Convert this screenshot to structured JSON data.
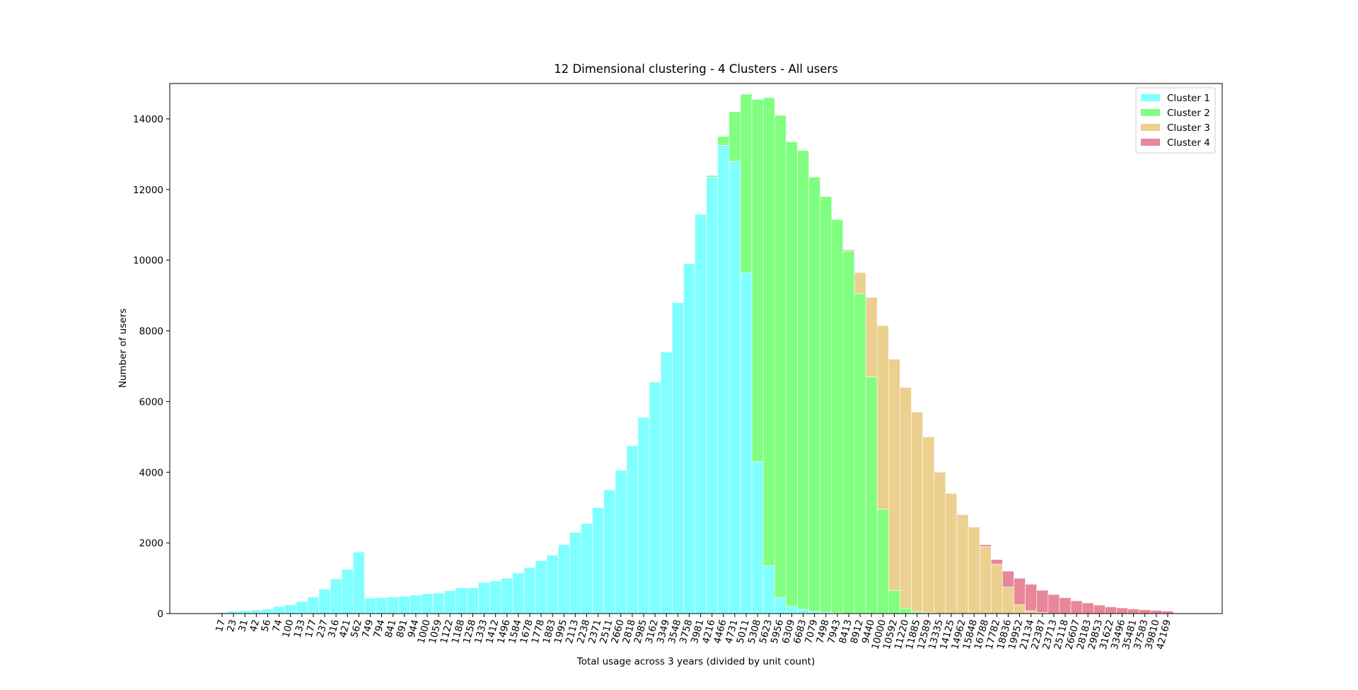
{
  "chart_data": {
    "type": "bar",
    "stacked": true,
    "title": "12 Dimensional clustering - 4 Clusters - All users",
    "x_label": "Total usage across 3 years (divided by unit count)",
    "y_label": "Number of users",
    "categories": [
      "17",
      "23",
      "31",
      "42",
      "56",
      "74",
      "100",
      "133",
      "177",
      "237",
      "316",
      "421",
      "562",
      "749",
      "794",
      "841",
      "891",
      "944",
      "1000",
      "1059",
      "1122",
      "1188",
      "1258",
      "1333",
      "1412",
      "1496",
      "1584",
      "1678",
      "1778",
      "1883",
      "1995",
      "2113",
      "2238",
      "2371",
      "2511",
      "2660",
      "2818",
      "2985",
      "3162",
      "3349",
      "3548",
      "3758",
      "3981",
      "4216",
      "4466",
      "4731",
      "5011",
      "5308",
      "5623",
      "5956",
      "6309",
      "6683",
      "7079",
      "7498",
      "7943",
      "8413",
      "8912",
      "9440",
      "10000",
      "10592",
      "11220",
      "11885",
      "12589",
      "13335",
      "14125",
      "14962",
      "15848",
      "16788",
      "17782",
      "18836",
      "19952",
      "21134",
      "22387",
      "23713",
      "25118",
      "26607",
      "28183",
      "29853",
      "31622",
      "33496",
      "35481",
      "37583",
      "39810",
      "42169"
    ],
    "series": [
      {
        "name": "Cluster 1",
        "color": "#80ffff",
        "values": [
          30,
          70,
          80,
          100,
          130,
          200,
          250,
          340,
          470,
          690,
          980,
          1250,
          1740,
          440,
          450,
          470,
          490,
          520,
          560,
          580,
          650,
          730,
          730,
          880,
          920,
          1000,
          1150,
          1300,
          1500,
          1650,
          1950,
          2300,
          2550,
          3000,
          3500,
          4050,
          4750,
          5550,
          6550,
          7400,
          8800,
          9900,
          11300,
          12350,
          13250,
          12800,
          9650,
          4300,
          1350,
          450,
          200,
          120,
          60,
          30,
          20,
          0,
          0,
          0,
          0,
          0,
          0,
          0,
          0,
          0,
          0,
          0,
          0,
          0,
          0,
          0,
          0,
          0,
          0,
          0,
          0,
          0,
          0,
          0,
          0,
          0,
          0,
          0,
          0,
          0
        ]
      },
      {
        "name": "Cluster 2",
        "color": "#80ff80",
        "values": [
          0,
          0,
          0,
          0,
          0,
          0,
          0,
          0,
          0,
          0,
          0,
          0,
          0,
          0,
          0,
          0,
          0,
          0,
          0,
          0,
          0,
          0,
          0,
          0,
          0,
          0,
          0,
          0,
          0,
          0,
          0,
          0,
          0,
          0,
          0,
          0,
          0,
          0,
          0,
          0,
          0,
          0,
          0,
          50,
          250,
          1400,
          5050,
          10250,
          13250,
          13650,
          13150,
          12980,
          12290,
          11770,
          11130,
          10250,
          9050,
          6700,
          2950,
          650,
          150,
          50,
          20,
          0,
          0,
          0,
          0,
          0,
          0,
          0,
          0,
          0,
          0,
          0,
          0,
          0,
          0,
          0,
          0,
          0,
          0,
          0,
          0,
          0
        ]
      },
      {
        "name": "Cluster 3",
        "color": "#ebd08f",
        "values": [
          0,
          0,
          0,
          0,
          0,
          0,
          0,
          0,
          0,
          0,
          0,
          0,
          0,
          0,
          0,
          0,
          0,
          0,
          0,
          0,
          0,
          0,
          0,
          0,
          0,
          0,
          0,
          0,
          0,
          0,
          0,
          0,
          0,
          0,
          0,
          0,
          0,
          0,
          0,
          0,
          0,
          0,
          0,
          0,
          0,
          0,
          0,
          0,
          0,
          0,
          0,
          0,
          0,
          0,
          0,
          50,
          600,
          2250,
          5200,
          6550,
          6250,
          5650,
          4980,
          4000,
          3400,
          2800,
          2450,
          1900,
          1400,
          750,
          250,
          80,
          30,
          0,
          0,
          0,
          0,
          0,
          0,
          0,
          0,
          0,
          0,
          0
        ]
      },
      {
        "name": "Cluster 4",
        "color": "#e8879a",
        "values": [
          0,
          0,
          0,
          0,
          0,
          0,
          0,
          0,
          0,
          0,
          0,
          0,
          0,
          0,
          0,
          0,
          0,
          0,
          0,
          0,
          0,
          0,
          0,
          0,
          0,
          0,
          0,
          0,
          0,
          0,
          0,
          0,
          0,
          0,
          0,
          0,
          0,
          0,
          0,
          0,
          0,
          0,
          0,
          0,
          0,
          0,
          0,
          0,
          0,
          0,
          0,
          0,
          0,
          0,
          0,
          0,
          0,
          0,
          0,
          0,
          0,
          0,
          0,
          0,
          0,
          0,
          0,
          50,
          130,
          450,
          750,
          750,
          630,
          540,
          450,
          360,
          300,
          240,
          190,
          160,
          130,
          110,
          90,
          70
        ]
      }
    ],
    "ylim": [
      0,
      15000
    ],
    "yticks": [
      0,
      2000,
      4000,
      6000,
      8000,
      10000,
      12000,
      14000
    ],
    "legend": "upper right"
  }
}
